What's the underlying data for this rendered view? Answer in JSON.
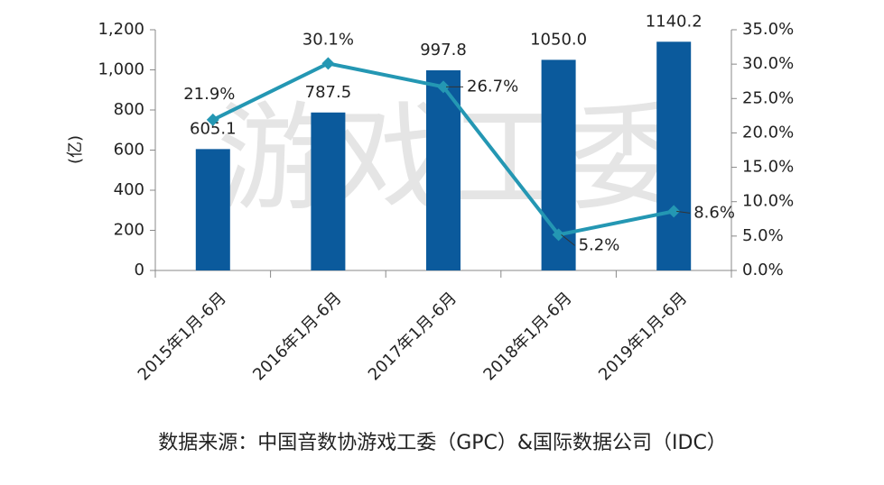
{
  "chart_data": {
    "type": "bar_line",
    "categories": [
      "2015年1月-6月",
      "2016年1月-6月",
      "2017年1月-6月",
      "2018年1月-6月",
      "2019年1月-6月"
    ],
    "series": [
      {
        "type": "bar",
        "color": "#0b5a9c",
        "values": [
          605.1,
          787.5,
          997.8,
          1050.0,
          1140.2
        ],
        "value_labels": [
          "605.1",
          "787.5",
          "997.8",
          "1050.0",
          "1140.2"
        ]
      },
      {
        "type": "line",
        "axis": "y2",
        "color": "#2497b3",
        "values": [
          21.9,
          30.1,
          26.7,
          5.2,
          8.6
        ],
        "value_labels": [
          "21.9%",
          "30.1%",
          "26.7%",
          "5.2%",
          "8.6%"
        ]
      }
    ],
    "ylabel": "(亿)",
    "ylim": [
      0,
      1200
    ],
    "yticks": [
      0,
      200,
      400,
      600,
      800,
      {
        "value": 1000,
        "label": "1,000"
      },
      {
        "value": 1200,
        "label": "1,200"
      }
    ],
    "y2lim": [
      0,
      35
    ],
    "y2ticks": [
      {
        "value": 0,
        "label": "0.0%"
      },
      {
        "value": 5,
        "label": "5.0%"
      },
      {
        "value": 10,
        "label": "10.0%"
      },
      {
        "value": 15,
        "label": "15.0%"
      },
      {
        "value": 20,
        "label": "20.0%"
      },
      {
        "value": 25,
        "label": "25.0%"
      },
      {
        "value": 30,
        "label": "30.0%"
      },
      {
        "value": 35,
        "label": "35.0%"
      }
    ],
    "watermark": "游戏工委",
    "source": "数据来源：中国音数协游戏工委（GPC）&国际数据公司（IDC）"
  }
}
